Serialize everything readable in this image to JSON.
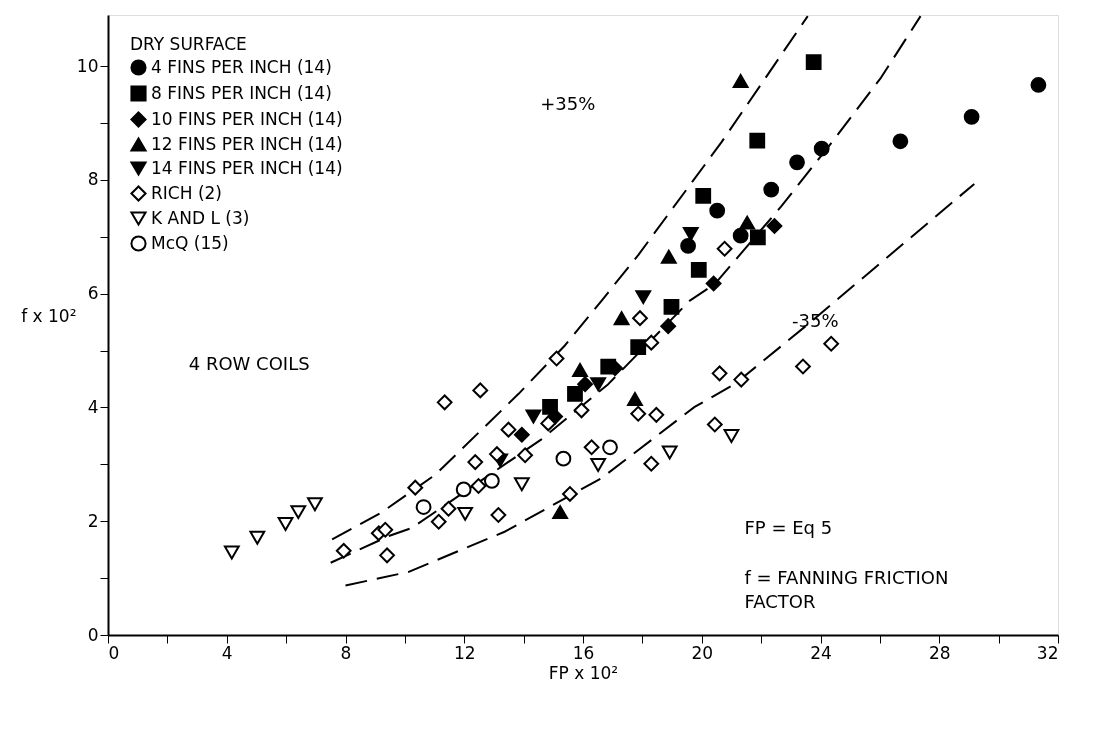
{
  "chart_data": {
    "type": "scatter",
    "xlabel": "FP x 10²",
    "ylabel": "f x 10²",
    "legend_title": "DRY SURFACE",
    "legend": "top left",
    "grid": false,
    "xlim": [
      0,
      32
    ],
    "ylim": [
      0,
      10.9
    ],
    "xticks": [
      0,
      {
        "value": 2,
        "label": null
      },
      4,
      {
        "value": 6,
        "label": null
      },
      8,
      {
        "value": 10,
        "label": null
      },
      12,
      {
        "value": 14,
        "label": null
      },
      16,
      {
        "value": 18,
        "label": null
      },
      20,
      {
        "value": 22,
        "label": null
      },
      24,
      {
        "value": 26,
        "label": null
      },
      28,
      {
        "value": 30,
        "label": null
      },
      32
    ],
    "yticks": [
      0,
      {
        "value": 1,
        "label": null
      },
      2,
      {
        "value": 3,
        "label": null
      },
      4,
      {
        "value": 5,
        "label": null
      },
      6,
      {
        "value": 7,
        "label": null
      },
      8,
      {
        "value": 9,
        "label": null
      },
      10
    ],
    "annotations": [
      "+35%",
      "-35%",
      "4 ROW COILS",
      "FP = Eq 5",
      "f = FANNING FRICTION FACTOR"
    ],
    "series": [
      {
        "type": "line",
        "line_style": "dashed",
        "color": "#000000",
        "x": [
          7.55,
          9.23,
          11.03,
          13.83,
          15.39,
          16.63,
          17.86,
          20.66,
          23.57
        ],
        "values": [
          1.68,
          2.16,
          2.82,
          4.24,
          5.09,
          5.88,
          6.68,
          8.66,
          10.88
        ]
      },
      {
        "type": "line",
        "line_style": "dashed",
        "color": "#000000",
        "x": [
          7.5,
          9.46,
          10.23,
          14.6,
          16.85,
          19.6,
          20.44,
          22.67,
          24.47,
          26.04,
          27.37
        ],
        "values": [
          1.27,
          1.74,
          1.88,
          3.44,
          4.41,
          5.88,
          6.17,
          7.53,
          8.72,
          9.8,
          10.88
        ]
      },
      {
        "type": "line",
        "line_style": "dashed",
        "color": "#000000",
        "x": [
          8.0,
          10.13,
          13.38,
          16.63,
          19.76,
          21.11,
          23.5,
          29.18
        ],
        "values": [
          0.87,
          1.11,
          1.82,
          2.76,
          4.01,
          4.41,
          5.43,
          7.93
        ]
      },
      {
        "name": "4 FINS PER INCH (14)",
        "marker": "circle",
        "color": "#000000",
        "x": [
          31.34,
          29.09,
          26.69,
          24.04,
          23.21,
          22.34,
          20.52,
          19.54,
          21.31
        ],
        "values": [
          9.67,
          9.11,
          8.68,
          8.55,
          8.31,
          7.83,
          7.46,
          6.84,
          7.02
        ]
      },
      {
        "name": "8 FINS PER INCH (14)",
        "marker": "square",
        "color": "#000000",
        "x": [
          23.77,
          21.87,
          20.05,
          19.9,
          18.98,
          21.89,
          17.86,
          16.85,
          15.73,
          14.89
        ],
        "values": [
          10.07,
          8.69,
          7.72,
          6.42,
          5.77,
          6.99,
          5.06,
          4.72,
          4.24,
          4.01
        ]
      },
      {
        "name": "10 FINS PER INCH (14)",
        "marker": "diamond",
        "color": "#000000",
        "x": [
          22.45,
          20.4,
          18.87,
          17.08,
          16.07,
          15.06,
          13.94
        ],
        "values": [
          7.19,
          6.18,
          5.43,
          4.69,
          4.41,
          3.84,
          3.52
        ]
      },
      {
        "name": "12 FINS PER INCH (14)",
        "marker": "triangle",
        "color": "#000000",
        "x": [
          21.31,
          18.89,
          21.53,
          17.3,
          15.9,
          17.75,
          15.23
        ],
        "values": [
          9.74,
          6.65,
          7.25,
          5.57,
          4.66,
          4.15,
          2.16
        ]
      },
      {
        "name": "14 FINS PER INCH (14)",
        "marker": "triangle-down",
        "color": "#000000",
        "x": [
          19.63,
          18.03,
          13.21,
          14.33,
          16.51
        ],
        "values": [
          7.05,
          5.94,
          3.07,
          3.84,
          4.41
        ]
      },
      {
        "name": "RICH (2)",
        "marker": "diamond",
        "color": "#ffffff",
        "x": [
          15.11,
          11.34,
          12.54,
          13.49,
          13.1,
          12.37,
          14.05,
          10.35,
          11.47,
          11.14,
          12.48,
          13.15,
          14.83,
          15.95,
          18.3,
          17.92,
          15.56,
          17.86,
          18.47,
          16.29,
          18.3,
          9.12,
          9.4,
          7.94,
          9.34,
          20.6,
          21.33,
          23.41,
          24.36,
          20.44,
          20.77
        ],
        "values": [
          4.86,
          4.09,
          4.3,
          3.61,
          3.18,
          3.04,
          3.16,
          2.59,
          2.22,
          1.99,
          2.62,
          2.11,
          3.72,
          3.95,
          5.14,
          5.57,
          2.48,
          3.89,
          3.87,
          3.3,
          3.01,
          1.79,
          1.4,
          1.48,
          1.85,
          4.6,
          4.49,
          4.72,
          5.12,
          3.7,
          6.79
        ]
      },
      {
        "name": "K AND L (3)",
        "marker": "triangle-down",
        "color": "#ffffff",
        "x": [
          4.17,
          5.03,
          5.98,
          6.41,
          6.97,
          12.03,
          13.94,
          16.51,
          18.92,
          21.0
        ],
        "values": [
          1.45,
          1.71,
          1.95,
          2.16,
          2.3,
          2.13,
          2.65,
          2.99,
          3.21,
          3.5
        ]
      },
      {
        "name": "McQ (15)",
        "marker": "circle",
        "color": "#ffffff",
        "x": [
          15.34,
          16.91,
          12.93,
          11.98,
          10.63
        ],
        "values": [
          3.1,
          3.3,
          2.71,
          2.56,
          2.25
        ]
      }
    ]
  }
}
